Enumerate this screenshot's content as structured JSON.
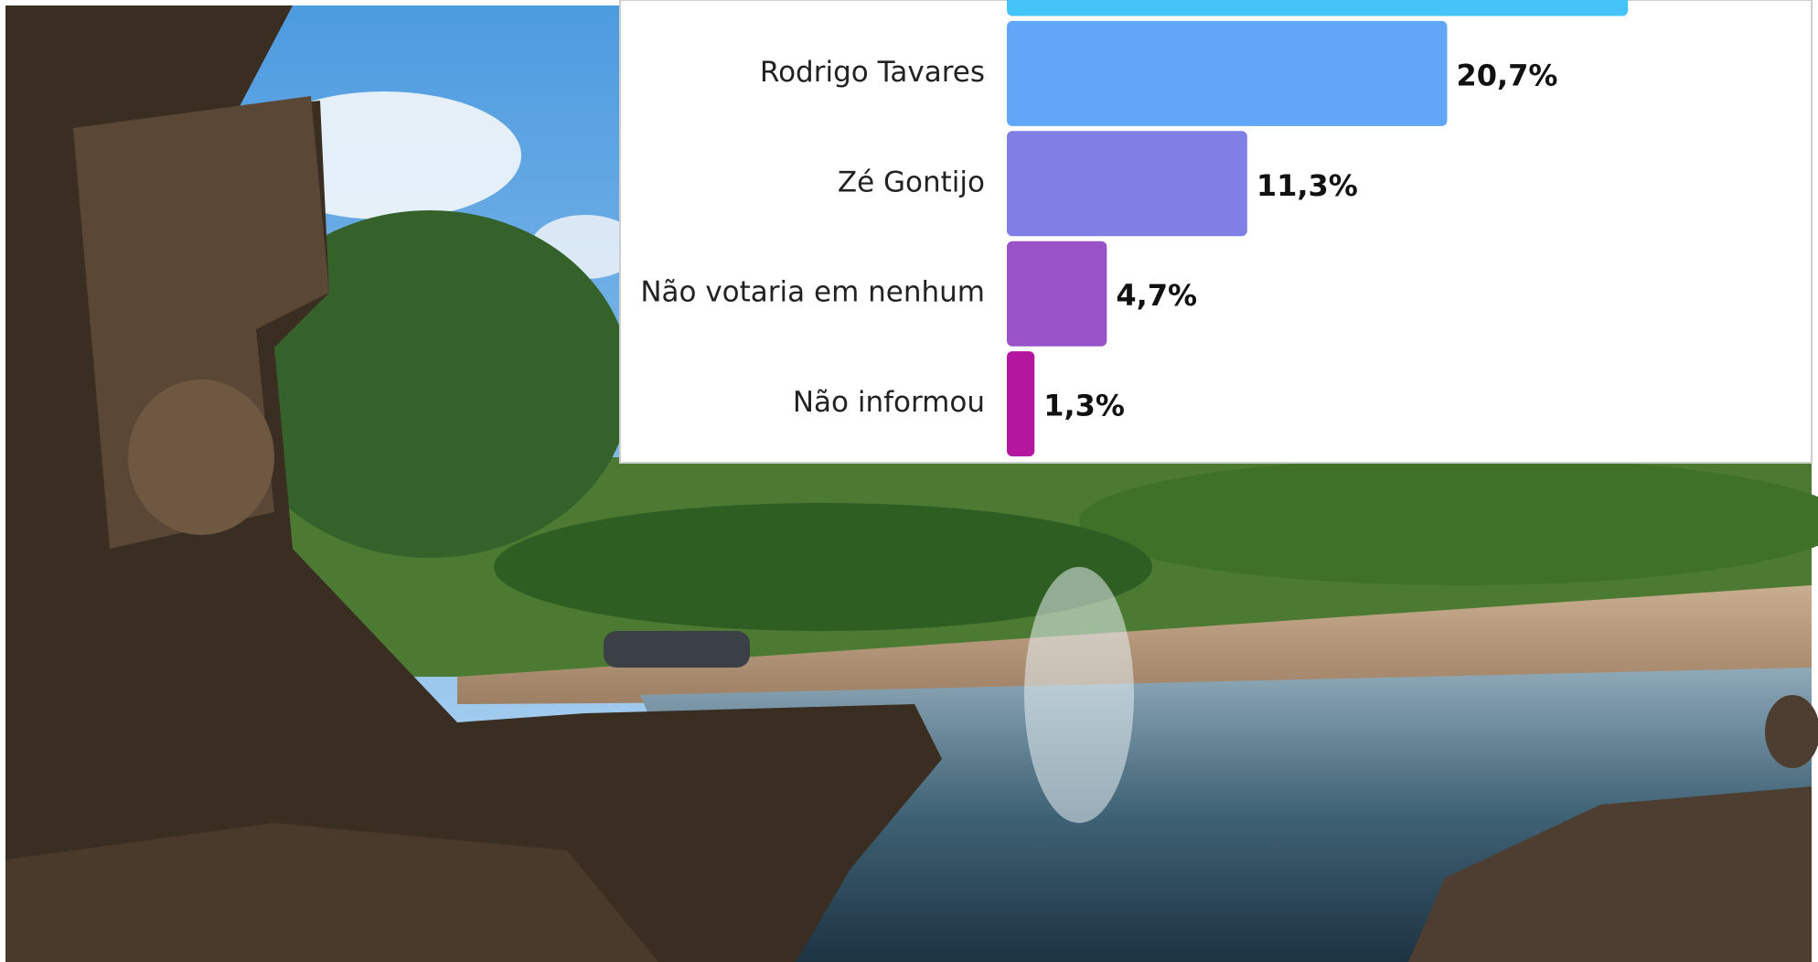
{
  "chart_data": {
    "type": "bar",
    "orientation": "horizontal",
    "categories": [
      null,
      "Rodrigo Tavares",
      "Zé Gontijo",
      "Não votaria em nenhum",
      "Não informou"
    ],
    "values": [
      29.2,
      20.7,
      11.3,
      4.7,
      1.3
    ],
    "value_labels": [
      null,
      "20,7%",
      "11,3%",
      "4,7%",
      "1,3%"
    ],
    "colors": [
      "#45c4f9",
      "#62a6f8",
      "#7f7fe6",
      "#9a52c9",
      "#b5169f"
    ]
  }
}
